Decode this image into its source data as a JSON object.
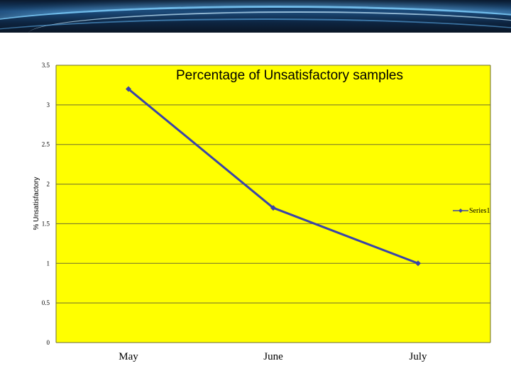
{
  "colors": {
    "plot_background": "#ffff00",
    "series_line": "#3a44a8",
    "gridline": "#6e6e30",
    "banner_dark": "#0a1a2e",
    "banner_glow": "#7fd0ff"
  },
  "chart_data": {
    "type": "line",
    "title": "Percentage  of Unsatisfactory samples",
    "xlabel": "",
    "ylabel": "% Unsatisfactory",
    "categories": [
      "May",
      "June",
      "July"
    ],
    "series": [
      {
        "name": "Series1",
        "values": [
          3.2,
          1.7,
          1.0
        ]
      }
    ],
    "ylim": [
      0,
      3.5
    ],
    "yticks": [
      "0",
      "0.5",
      "1",
      "1.5",
      "2",
      "2.5",
      "3",
      "3.5"
    ],
    "grid": true,
    "legend_position": "right"
  }
}
